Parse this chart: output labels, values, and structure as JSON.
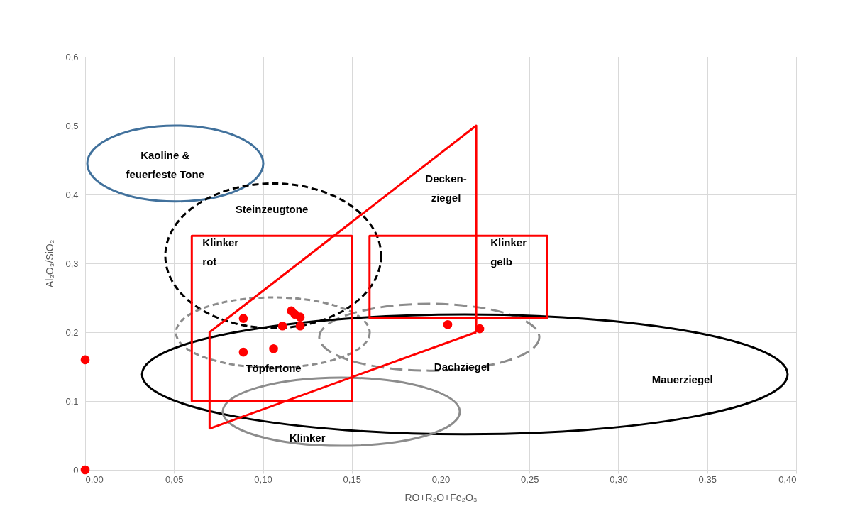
{
  "chart_data": {
    "type": "scatter",
    "xlabel": "RO+R₂O+Fe₂O₃",
    "ylabel": "Al₂O₃/SiO₂",
    "xlim": [
      0,
      0.4
    ],
    "ylim": [
      0,
      0.6
    ],
    "xticks": [
      {
        "value": 0,
        "label": "0,00"
      },
      {
        "value": 0.05,
        "label": "0,05"
      },
      {
        "value": 0.1,
        "label": "0,10"
      },
      {
        "value": 0.15,
        "label": "0,15"
      },
      {
        "value": 0.2,
        "label": "0,20"
      },
      {
        "value": 0.25,
        "label": "0,25"
      },
      {
        "value": 0.3,
        "label": "0,30"
      },
      {
        "value": 0.35,
        "label": "0,35"
      },
      {
        "value": 0.4,
        "label": "0,40"
      }
    ],
    "yticks": [
      0,
      {
        "value": 0.1,
        "label": "0,1"
      },
      {
        "value": 0.2,
        "label": "0,2"
      },
      {
        "value": 0.3,
        "label": "0,3"
      },
      {
        "value": 0.4,
        "label": "0,4"
      },
      {
        "value": 0.5,
        "label": "0,5"
      },
      {
        "value": 0.6,
        "label": "0,6"
      }
    ],
    "grid": true,
    "series": [
      {
        "type": "line",
        "color": "#ff0000",
        "line_style": "solid",
        "marker": "none",
        "x": [
          0.07,
          0.07,
          0.22,
          0.22
        ],
        "values": [
          0.06,
          0.2,
          0.5,
          0.2
        ]
      },
      {
        "type": "line",
        "color": "#ff0000",
        "line_style": "solid",
        "marker": "none",
        "x": [
          0.07,
          0.22
        ],
        "values": [
          0.06,
          0.2
        ]
      },
      {
        "type": "scatter",
        "color": "#ff0000",
        "marker": "circle",
        "x": [
          0,
          0,
          0.089,
          0.089,
          0.106,
          0.111,
          0.116,
          0.118,
          0.121,
          0.121,
          0.204,
          0.222
        ],
        "values": [
          0.16,
          0,
          0.22,
          0.171,
          0.176,
          0.209,
          0.231,
          0.226,
          0.222,
          0.209,
          0.211,
          0.205
        ]
      }
    ],
    "annotations": [
      "Kaoline &\nfeuerfeste Tone",
      "Steinzeugtone",
      "Klinker\nrot",
      "Decken-\nziegel",
      "Klinker\ngelb",
      "Töpfertone",
      "Dachziegel",
      "Mauerziegel",
      "Klinker"
    ]
  }
}
